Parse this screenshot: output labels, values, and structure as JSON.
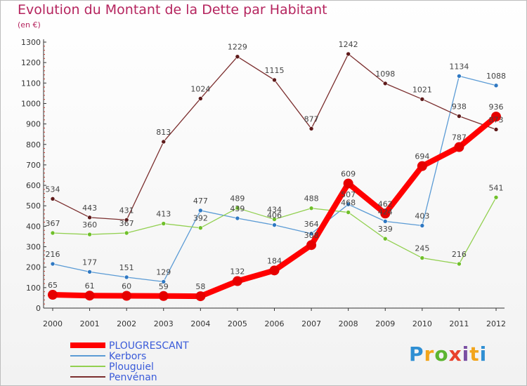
{
  "title": "Evolution du Montant de la Dette par Habitant",
  "subtitle": "(en €)",
  "logo": {
    "text": "Proxiti",
    "letter_colors": [
      "#2f8fd3",
      "#f2a51c",
      "#5cb531",
      "#e8412c",
      "#7a4fa3",
      "#f2a51c",
      "#2f8fd3"
    ]
  },
  "chart_data": {
    "type": "line",
    "title": "Evolution du Montant de la Dette par Habitant",
    "subtitle": "(en €)",
    "xlabel": "",
    "ylabel": "",
    "x": [
      2000,
      2001,
      2002,
      2003,
      2004,
      2005,
      2006,
      2007,
      2008,
      2009,
      2010,
      2011,
      2012
    ],
    "ylim": [
      0,
      1300
    ],
    "yticks": [
      0,
      100,
      200,
      300,
      400,
      500,
      600,
      700,
      800,
      900,
      1000,
      1100,
      1200,
      1300
    ],
    "grid": false,
    "legend_position": "bottom-left",
    "series": [
      {
        "name": "Kerbors",
        "color": "#5b9bd5",
        "marker_color": "#2f78c2",
        "values": [
          216,
          177,
          151,
          129,
          477,
          439,
          406,
          364,
          507,
          424,
          403,
          1134,
          1088
        ],
        "labels": [
          "216",
          "177",
          "151",
          "129",
          "477",
          "439",
          "406",
          "364",
          "507",
          "424",
          "403",
          "1134",
          "1088"
        ]
      },
      {
        "name": "Plouguiel",
        "color": "#92d050",
        "marker_color": "#6fbf2a",
        "values": [
          367,
          360,
          367,
          413,
          392,
          489,
          434,
          488,
          468,
          339,
          245,
          216,
          541
        ],
        "labels": [
          "367",
          "360",
          "367",
          "413",
          "392",
          "489",
          "434",
          "488",
          "468",
          "339",
          "245",
          "216",
          "541"
        ]
      },
      {
        "name": "Penvénan",
        "color": "#7b2e2e",
        "marker_color": "#5e1a1a",
        "values": [
          534,
          443,
          431,
          813,
          1024,
          1229,
          1115,
          877,
          1242,
          1098,
          1021,
          938,
          873
        ],
        "labels": [
          "534",
          "443",
          "431",
          "813",
          "1024",
          "1229",
          "1115",
          "877",
          "1242",
          "1098",
          "1021",
          "938",
          "873"
        ]
      },
      {
        "name": "PLOUGRESCANT",
        "color": "#ff0000",
        "marker_color": "#e60000",
        "values": [
          65,
          61,
          60,
          59,
          58,
          132,
          184,
          308,
          609,
          462,
          694,
          787,
          936
        ],
        "labels": [
          "65",
          "61",
          "60",
          "59",
          "58",
          "132",
          "184",
          "308",
          "609",
          "462",
          "694",
          "787",
          "936"
        ]
      }
    ],
    "legend": [
      {
        "name": "PLOUGRESCANT",
        "color": "#ff0000",
        "width": 8
      },
      {
        "name": "Kerbors",
        "color": "#5b9bd5",
        "width": 2
      },
      {
        "name": "Plouguiel",
        "color": "#92d050",
        "width": 2
      },
      {
        "name": "Penvénan",
        "color": "#7b2e2e",
        "width": 2
      }
    ]
  }
}
